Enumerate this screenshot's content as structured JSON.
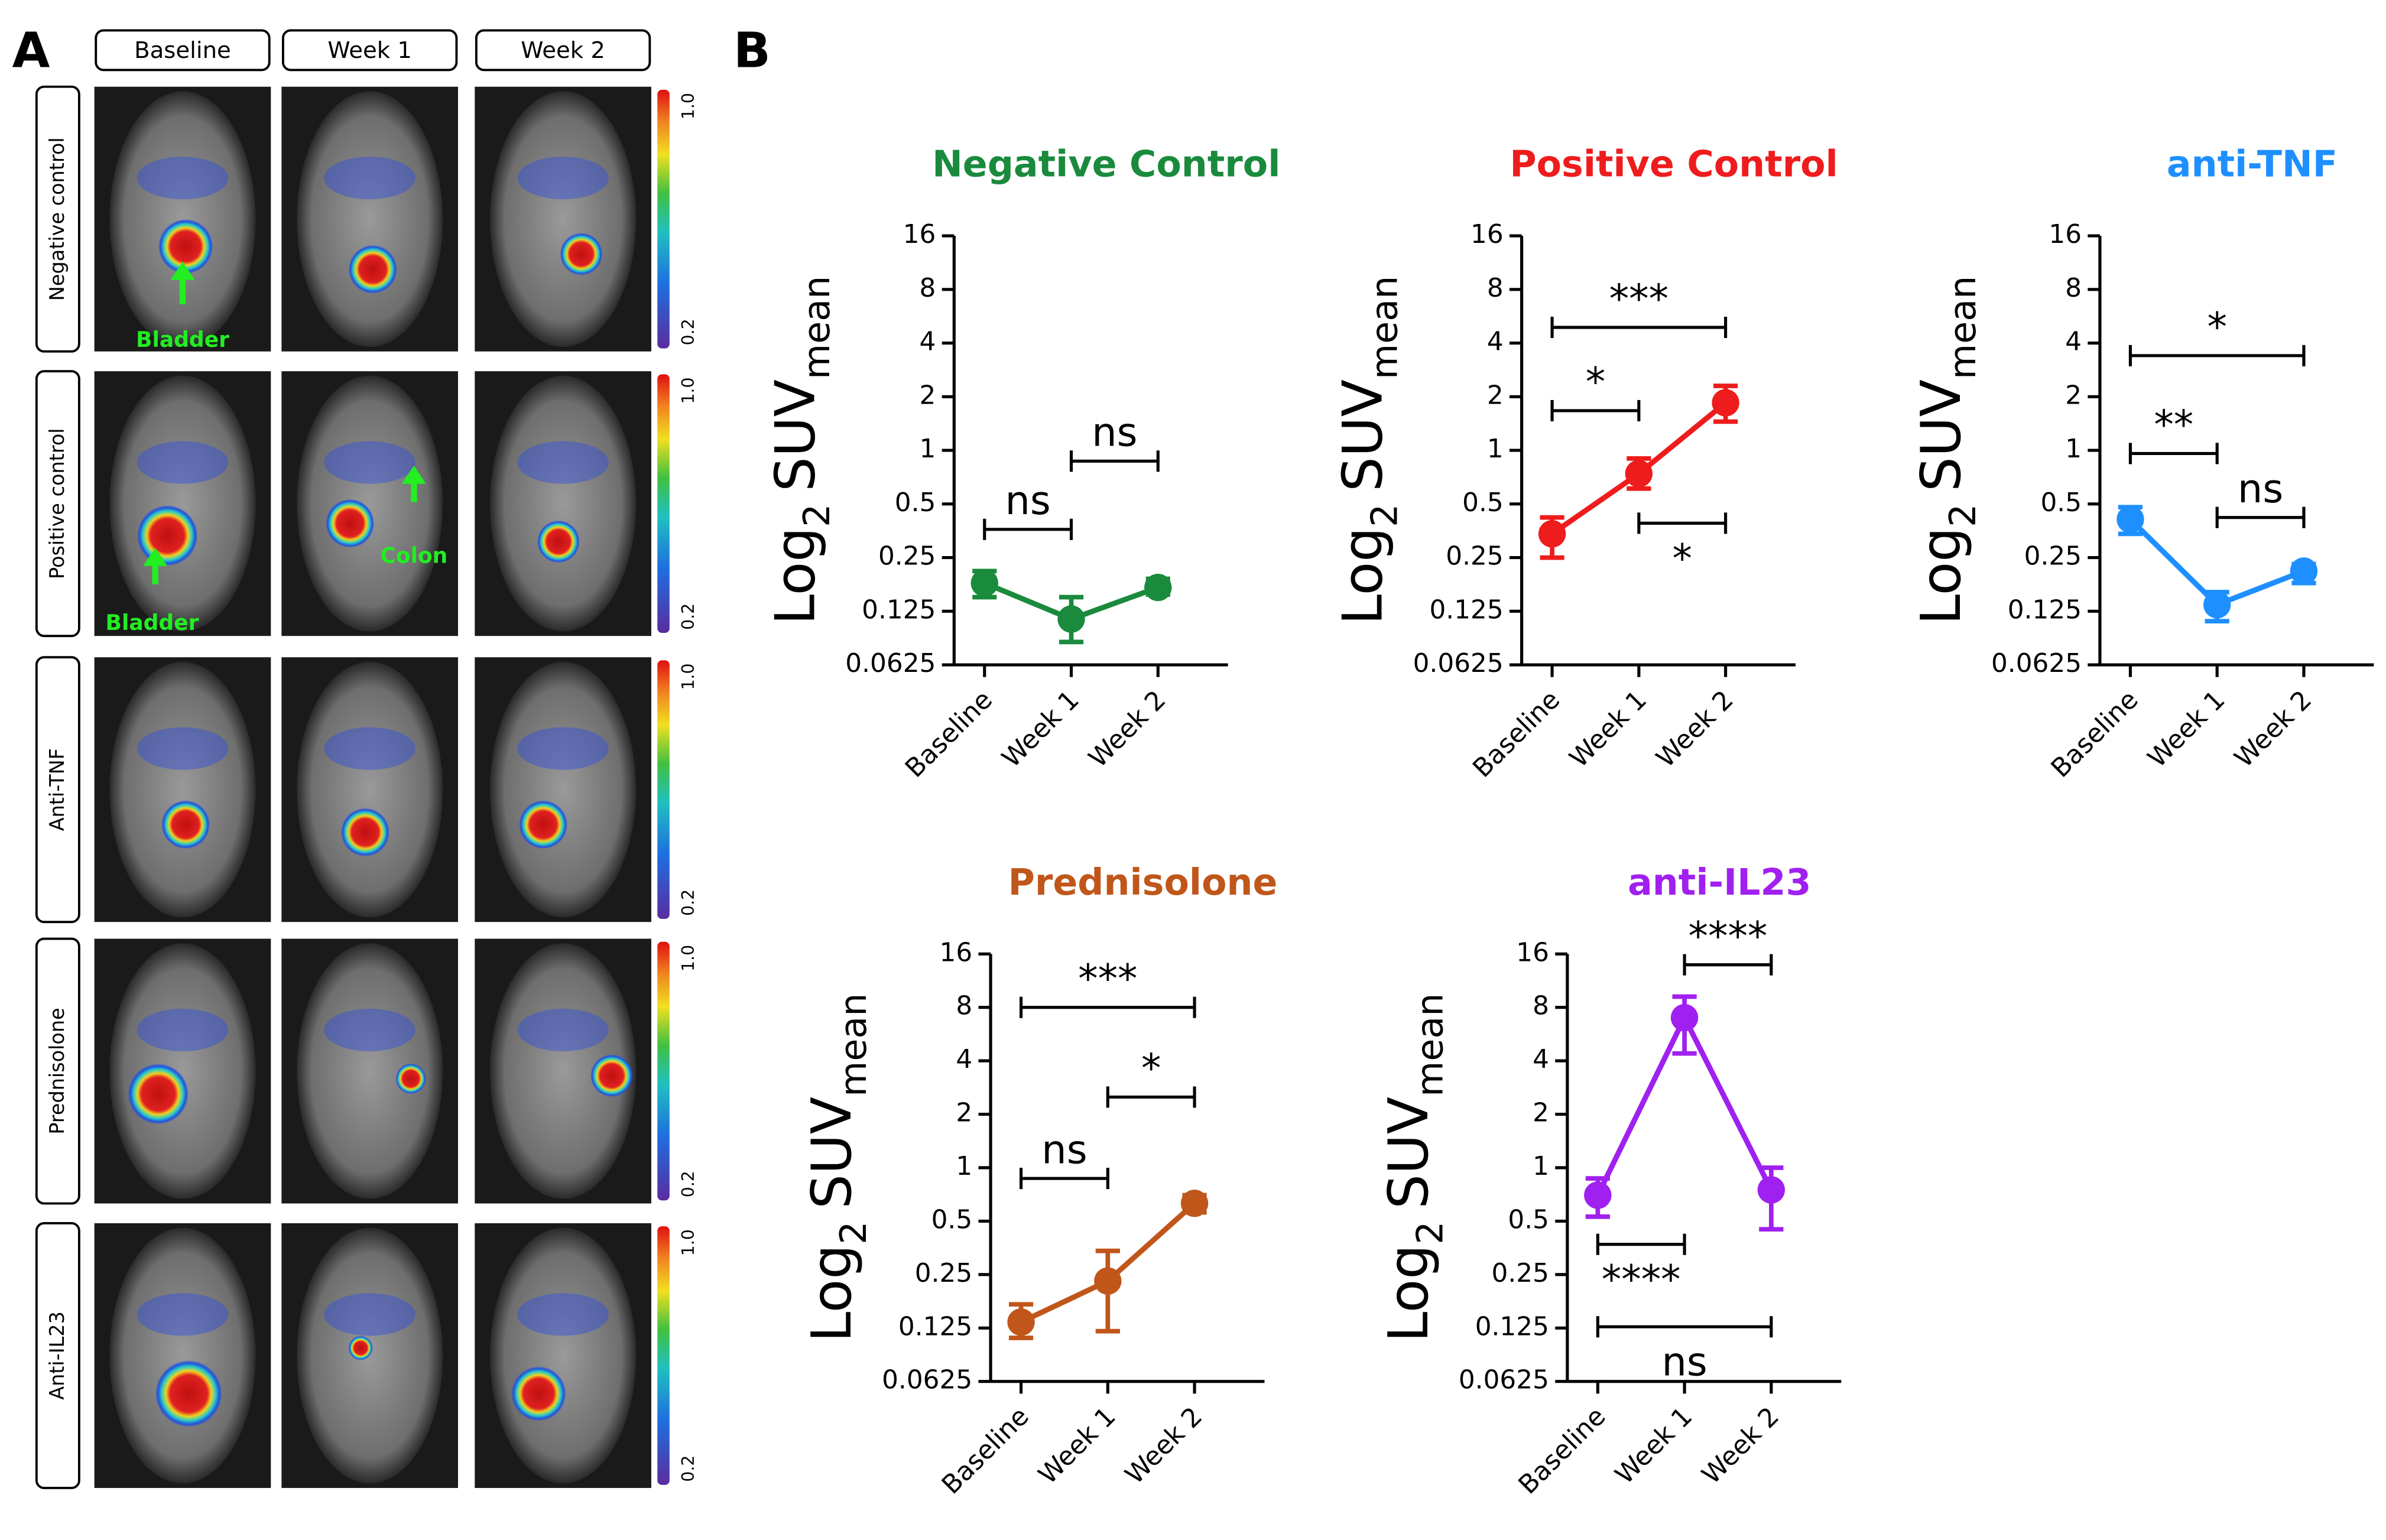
{
  "panel_labels": [
    "A",
    "B"
  ],
  "panel_a": {
    "columns": [
      "Baseline",
      "Week 1",
      "Week 2"
    ],
    "rows": [
      "Negative control",
      "Positive control",
      "Anti-TNF",
      "Prednisolone",
      "Anti-IL23"
    ],
    "colorbar": {
      "max": "1.0",
      "min": "0.2"
    },
    "annotations": [
      "Bladder",
      "Bladder",
      "Colon"
    ]
  },
  "chart_data": [
    {
      "type": "line",
      "title": "Negative Control",
      "ylabel": [
        "Log",
        "2",
        "SUV",
        "mean"
      ],
      "categories": [
        "Baseline",
        "Week 1",
        "Week 2"
      ],
      "color": "#1a8a3c",
      "values": [
        0.18,
        0.113,
        0.17
      ],
      "error_low": [
        0.15,
        0.084,
        0.155
      ],
      "error_high": [
        0.21,
        0.15,
        0.19
      ],
      "yscale": "log2",
      "ylim": [
        0.0625,
        16
      ],
      "yticks": [
        0.0625,
        0.125,
        0.25,
        0.5,
        1,
        2,
        4,
        8,
        16
      ],
      "brackets": [
        {
          "label": "ns",
          "from": 0,
          "to": 1,
          "y": 0.36,
          "label_position": "above"
        },
        {
          "label": "ns",
          "from": 1,
          "to": 2,
          "y": 0.87,
          "label_position": "above"
        }
      ]
    },
    {
      "type": "line",
      "title": "Positive Control",
      "ylabel": [
        "Log",
        "2",
        "SUV",
        "mean"
      ],
      "categories": [
        "Baseline",
        "Week 1",
        "Week 2"
      ],
      "color": "#ee1c1c",
      "values": [
        0.34,
        0.74,
        1.85
      ],
      "error_low": [
        0.25,
        0.61,
        1.45
      ],
      "error_high": [
        0.42,
        0.9,
        2.3
      ],
      "yscale": "log2",
      "ylim": [
        0.0625,
        16
      ],
      "yticks": [
        0.0625,
        0.125,
        0.25,
        0.5,
        1,
        2,
        4,
        8,
        16
      ],
      "brackets": [
        {
          "label": "***",
          "from": 0,
          "to": 2,
          "y": 4.9,
          "label_position": "above"
        },
        {
          "label": "*",
          "from": 0,
          "to": 1,
          "y": 1.67,
          "label_position": "above"
        },
        {
          "label": "*",
          "from": 1,
          "to": 2,
          "y": 0.39,
          "label_position": "below"
        }
      ]
    },
    {
      "type": "line",
      "title": "anti-TNF",
      "ylabel": [
        "Log",
        "2",
        "SUV",
        "mean"
      ],
      "categories": [
        "Baseline",
        "Week 1",
        "Week 2"
      ],
      "color": "#1e8fff",
      "values": [
        0.41,
        0.136,
        0.21
      ],
      "error_low": [
        0.34,
        0.11,
        0.18
      ],
      "error_high": [
        0.48,
        0.16,
        0.23
      ],
      "yscale": "log2",
      "ylim": [
        0.0625,
        16
      ],
      "yticks": [
        0.0625,
        0.125,
        0.25,
        0.5,
        1,
        2,
        4,
        8,
        16
      ],
      "brackets": [
        {
          "label": "*",
          "from": 0,
          "to": 2,
          "y": 3.4,
          "label_position": "above"
        },
        {
          "label": "**",
          "from": 0,
          "to": 1,
          "y": 0.96,
          "label_position": "above"
        },
        {
          "label": "ns",
          "from": 1,
          "to": 2,
          "y": 0.42,
          "label_position": "above"
        }
      ]
    },
    {
      "type": "line",
      "title": "Prednisolone",
      "ylabel": [
        "Log",
        "2",
        "SUV",
        "mean"
      ],
      "categories": [
        "Baseline",
        "Week 1",
        "Week 2"
      ],
      "color": "#c0561a",
      "values": [
        0.135,
        0.23,
        0.63
      ],
      "error_low": [
        0.11,
        0.12,
        0.56
      ],
      "error_high": [
        0.17,
        0.34,
        0.7
      ],
      "yscale": "log2",
      "ylim": [
        0.0625,
        16
      ],
      "yticks": [
        0.0625,
        0.125,
        0.25,
        0.5,
        1,
        2,
        4,
        8,
        16
      ],
      "brackets": [
        {
          "label": "***",
          "from": 0,
          "to": 2,
          "y": 8,
          "label_position": "above"
        },
        {
          "label": "*",
          "from": 1,
          "to": 2,
          "y": 2.5,
          "label_position": "above"
        },
        {
          "label": "ns",
          "from": 0,
          "to": 1,
          "y": 0.87,
          "label_position": "above"
        }
      ]
    },
    {
      "type": "line",
      "title": "anti-IL23",
      "ylabel": [
        "Log",
        "2",
        "SUV",
        "mean"
      ],
      "categories": [
        "Baseline",
        "Week 1",
        "Week 2"
      ],
      "color": "#a020f0",
      "values": [
        0.7,
        7,
        0.75
      ],
      "error_low": [
        0.53,
        4.4,
        0.45
      ],
      "error_high": [
        0.87,
        9.2,
        1
      ],
      "yscale": "log2",
      "ylim": [
        0.0625,
        16
      ],
      "yticks": [
        0.0625,
        0.125,
        0.25,
        0.5,
        1,
        2,
        4,
        8,
        16
      ],
      "brackets": [
        {
          "label": "****",
          "from": 1,
          "to": 2,
          "y": 13.9,
          "label_position": "above"
        },
        {
          "label": "****",
          "from": 0,
          "to": 1,
          "y": 0.37,
          "label_position": "below"
        },
        {
          "label": "ns",
          "from": 0,
          "to": 2,
          "y": 0.127,
          "label_position": "below"
        }
      ]
    }
  ]
}
